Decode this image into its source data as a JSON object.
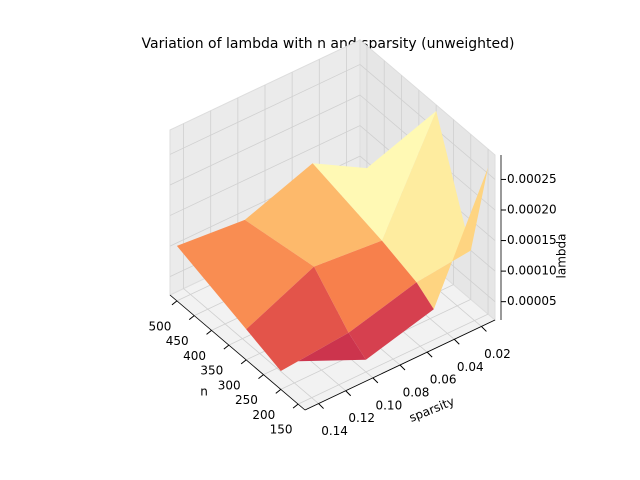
{
  "chart_data": {
    "type": "surface3d",
    "title": "Variation of lambda with n and sparsity (unweighted)",
    "xlabel": "n",
    "ylabel": "sparsity",
    "zlabel": "lambda",
    "x": [
      150,
      200,
      300,
      500
    ],
    "y": [
      0.01,
      0.05,
      0.1,
      0.15
    ],
    "z": [
      [
        0.00026,
        7e-05,
        4e-05,
        9e-05
      ],
      [
        0.0001,
        9e-05,
        6e-05,
        5e-05
      ],
      [
        0.00028,
        0.00011,
        0.00012,
        7e-05
      ],
      [
        9e-05,
        0.00014,
        0.0001,
        0.00011
      ]
    ],
    "colormap": "Spectral",
    "xlim": [
      130,
      520
    ],
    "xticks": [
      150,
      200,
      250,
      300,
      350,
      400,
      450,
      500
    ],
    "ylim": [
      0.01,
      0.15
    ],
    "yticks": [
      0.02,
      0.04,
      0.06,
      0.08,
      {
        "value": 0.1,
        "label": "0.10"
      },
      0.12,
      0.14
    ],
    "zlim": [
      2e-05,
      0.00029
    ],
    "zticks": [
      5e-05,
      {
        "value": 0.0001,
        "label": "0.00010"
      },
      0.00015,
      {
        "value": 0.0002,
        "label": "0.00020"
      },
      0.00025
    ],
    "grid": true
  }
}
